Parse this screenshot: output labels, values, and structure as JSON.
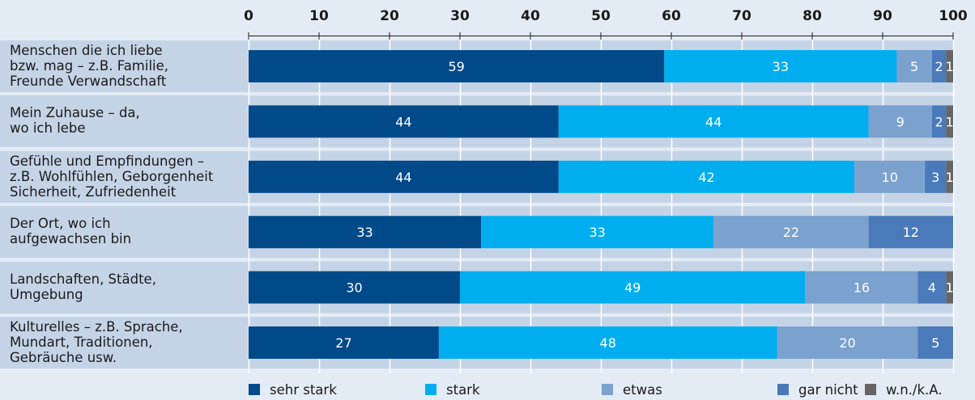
{
  "chart_data": {
    "type": "bar",
    "orientation": "horizontal",
    "stacked": true,
    "xlim": [
      0,
      100
    ],
    "x_ticks": [
      "0",
      "10",
      "20",
      "30",
      "40",
      "50",
      "60",
      "70",
      "80",
      "90",
      "100"
    ],
    "categories": [
      [
        "Menschen die ich liebe",
        "bzw. mag – z.B. Familie,",
        "Freunde Verwandschaft"
      ],
      [
        "Mein Zuhause – da,",
        "wo ich lebe"
      ],
      [
        "Gefühle und Empfindungen –",
        "z.B. Wohlfühlen, Geborgenheit",
        "Sicherheit, Zufriedenheit"
      ],
      [
        "Der Ort, wo ich",
        "aufgewachsen bin"
      ],
      [
        "Landschaften, Städte,",
        "Umgebung"
      ],
      [
        "Kulturelles – z.B. Sprache,",
        "Mundart, Traditionen,",
        "Gebräuche usw."
      ]
    ],
    "series": [
      {
        "name": "sehr stark",
        "color": "#004a8a",
        "values": [
          59,
          44,
          44,
          33,
          30,
          27
        ]
      },
      {
        "name": "stark",
        "color": "#00aeef",
        "values": [
          33,
          44,
          42,
          33,
          49,
          48
        ]
      },
      {
        "name": "etwas",
        "color": "#7ba1cf",
        "values": [
          5,
          9,
          10,
          22,
          16,
          20
        ]
      },
      {
        "name": "gar nicht",
        "color": "#4a7ab9",
        "values": [
          2,
          2,
          3,
          12,
          4,
          5
        ]
      },
      {
        "name": "w.n./k.A.",
        "color": "#666666",
        "values": [
          1,
          1,
          1,
          0,
          1,
          0
        ]
      }
    ],
    "legend_position": "bottom",
    "grid": true
  }
}
